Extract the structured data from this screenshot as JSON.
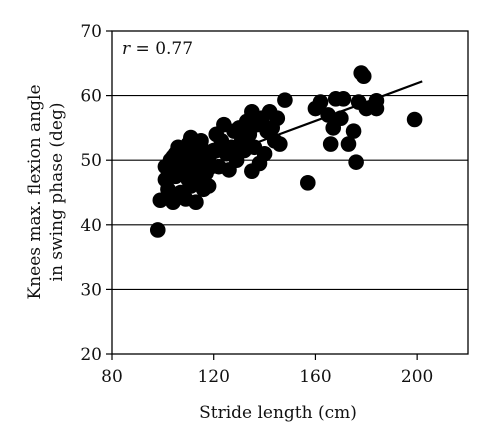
{
  "chart_data": {
    "type": "scatter",
    "xlabel": "Stride length (cm)",
    "ylabel_lines": [
      "Knees max. flexion angle",
      "in swing phase (deg)"
    ],
    "annotation": {
      "r_label": "r",
      "r_value": " = 0.77"
    },
    "xlim": [
      80,
      220
    ],
    "ylim": [
      20,
      70
    ],
    "xticks": [
      80,
      120,
      160,
      200
    ],
    "yticks": [
      20,
      30,
      40,
      50,
      60,
      70
    ],
    "grid": "horizontal",
    "colors": {
      "points": "#000000",
      "line": "#000000",
      "grid": "#000000"
    },
    "trendline": {
      "x": [
        110,
        202
      ],
      "y": [
        48.8,
        62.2
      ]
    },
    "points": [
      {
        "x": 98,
        "y": 39.2
      },
      {
        "x": 99,
        "y": 43.8
      },
      {
        "x": 101,
        "y": 47.0
      },
      {
        "x": 101,
        "y": 49.0
      },
      {
        "x": 102,
        "y": 45.5
      },
      {
        "x": 103,
        "y": 48.5
      },
      {
        "x": 103,
        "y": 50.0
      },
      {
        "x": 104,
        "y": 43.5
      },
      {
        "x": 104,
        "y": 50.5
      },
      {
        "x": 105,
        "y": 47.5
      },
      {
        "x": 105,
        "y": 51.0
      },
      {
        "x": 106,
        "y": 49.5
      },
      {
        "x": 106,
        "y": 52.0
      },
      {
        "x": 107,
        "y": 45.0
      },
      {
        "x": 107,
        "y": 50.0
      },
      {
        "x": 108,
        "y": 48.0
      },
      {
        "x": 108,
        "y": 51.5
      },
      {
        "x": 109,
        "y": 44.0
      },
      {
        "x": 109,
        "y": 50.5
      },
      {
        "x": 110,
        "y": 47.0
      },
      {
        "x": 110,
        "y": 52.5
      },
      {
        "x": 110,
        "y": 49.0
      },
      {
        "x": 111,
        "y": 53.5
      },
      {
        "x": 111,
        "y": 46.0
      },
      {
        "x": 112,
        "y": 50.0
      },
      {
        "x": 112,
        "y": 48.0
      },
      {
        "x": 113,
        "y": 52.0
      },
      {
        "x": 113,
        "y": 43.5
      },
      {
        "x": 114,
        "y": 47.0
      },
      {
        "x": 114,
        "y": 51.0
      },
      {
        "x": 115,
        "y": 53.0
      },
      {
        "x": 115,
        "y": 49.0
      },
      {
        "x": 116,
        "y": 45.5
      },
      {
        "x": 116,
        "y": 51.5
      },
      {
        "x": 117,
        "y": 48.0
      },
      {
        "x": 118,
        "y": 50.0
      },
      {
        "x": 118,
        "y": 46.0
      },
      {
        "x": 119,
        "y": 49.0
      },
      {
        "x": 120,
        "y": 51.5
      },
      {
        "x": 121,
        "y": 54.0
      },
      {
        "x": 122,
        "y": 49.0
      },
      {
        "x": 123,
        "y": 53.0
      },
      {
        "x": 124,
        "y": 55.5
      },
      {
        "x": 125,
        "y": 51.0
      },
      {
        "x": 126,
        "y": 48.5
      },
      {
        "x": 127,
        "y": 52.0
      },
      {
        "x": 128,
        "y": 54.5
      },
      {
        "x": 129,
        "y": 50.0
      },
      {
        "x": 130,
        "y": 55.0
      },
      {
        "x": 131,
        "y": 53.0
      },
      {
        "x": 132,
        "y": 51.5
      },
      {
        "x": 133,
        "y": 56.0
      },
      {
        "x": 134,
        "y": 54.0
      },
      {
        "x": 135,
        "y": 57.5
      },
      {
        "x": 135,
        "y": 48.3
      },
      {
        "x": 136,
        "y": 52.0
      },
      {
        "x": 137,
        "y": 55.5
      },
      {
        "x": 138,
        "y": 49.5
      },
      {
        "x": 139,
        "y": 56.5
      },
      {
        "x": 140,
        "y": 51.0
      },
      {
        "x": 141,
        "y": 54.5
      },
      {
        "x": 142,
        "y": 57.5
      },
      {
        "x": 143,
        "y": 55.0
      },
      {
        "x": 144,
        "y": 53.0
      },
      {
        "x": 145,
        "y": 56.5
      },
      {
        "x": 146,
        "y": 52.5
      },
      {
        "x": 148,
        "y": 59.3
      },
      {
        "x": 157,
        "y": 46.5
      },
      {
        "x": 160,
        "y": 58.0
      },
      {
        "x": 162,
        "y": 59.0
      },
      {
        "x": 165,
        "y": 57.0
      },
      {
        "x": 166,
        "y": 52.5
      },
      {
        "x": 167,
        "y": 55.0
      },
      {
        "x": 168,
        "y": 59.5
      },
      {
        "x": 170,
        "y": 56.5
      },
      {
        "x": 171,
        "y": 59.5
      },
      {
        "x": 173,
        "y": 52.5
      },
      {
        "x": 175,
        "y": 54.5
      },
      {
        "x": 176,
        "y": 49.7
      },
      {
        "x": 177,
        "y": 59.0
      },
      {
        "x": 178,
        "y": 63.5
      },
      {
        "x": 179,
        "y": 63.0
      },
      {
        "x": 180,
        "y": 58.0
      },
      {
        "x": 184,
        "y": 59.2
      },
      {
        "x": 184,
        "y": 58.0
      },
      {
        "x": 199,
        "y": 56.3
      }
    ]
  }
}
